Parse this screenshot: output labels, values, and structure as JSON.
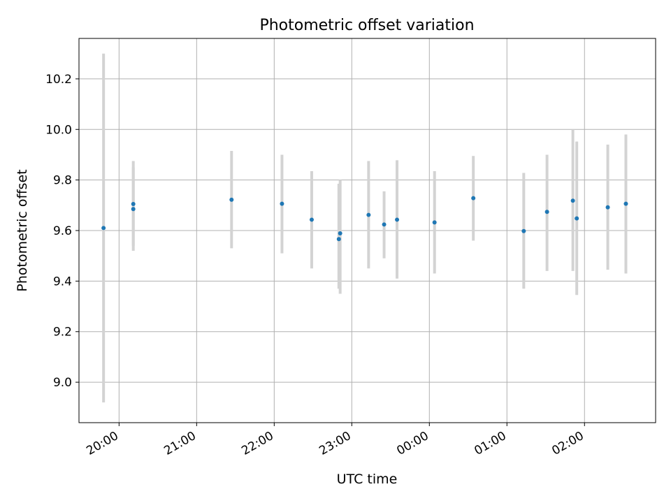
{
  "chart_data": {
    "type": "scatter",
    "title": "Photometric offset variation",
    "xlabel": "UTC time",
    "ylabel": "Photometric offset",
    "grid": true,
    "x_ticks": [
      "20:00",
      "21:00",
      "22:00",
      "23:00",
      "00:00",
      "01:00",
      "02:00"
    ],
    "y_ticks": [
      "9.0",
      "9.2",
      "9.4",
      "9.6",
      "9.8",
      "10.0",
      "10.2"
    ],
    "xlim": [
      "19:29",
      "02:55"
    ],
    "ylim": [
      8.84,
      10.36
    ],
    "colors": {
      "point": "#1f77b4",
      "errorbar": "#d3d3d3",
      "grid": "#b0b0b0"
    },
    "points": [
      {
        "t": "19:48",
        "y": 9.61,
        "ylo": 8.92,
        "yhi": 10.3
      },
      {
        "t": "20:11",
        "y": 9.705,
        "ylo": 9.54,
        "yhi": 9.875
      },
      {
        "t": "20:11",
        "y": 9.685,
        "ylo": 9.52,
        "yhi": 9.85
      },
      {
        "t": "21:27",
        "y": 9.722,
        "ylo": 9.53,
        "yhi": 9.915
      },
      {
        "t": "22:06",
        "y": 9.706,
        "ylo": 9.51,
        "yhi": 9.9
      },
      {
        "t": "22:29",
        "y": 9.643,
        "ylo": 9.45,
        "yhi": 9.835
      },
      {
        "t": "22:50",
        "y": 9.566,
        "ylo": 9.37,
        "yhi": 9.785
      },
      {
        "t": "22:51",
        "y": 9.589,
        "ylo": 9.35,
        "yhi": 9.8
      },
      {
        "t": "23:13",
        "y": 9.662,
        "ylo": 9.45,
        "yhi": 9.875
      },
      {
        "t": "23:25",
        "y": 9.624,
        "ylo": 9.49,
        "yhi": 9.755
      },
      {
        "t": "23:35",
        "y": 9.643,
        "ylo": 9.41,
        "yhi": 9.878
      },
      {
        "t": "00:04",
        "y": 9.632,
        "ylo": 9.43,
        "yhi": 9.835
      },
      {
        "t": "00:34",
        "y": 9.728,
        "ylo": 9.56,
        "yhi": 9.895
      },
      {
        "t": "01:13",
        "y": 9.598,
        "ylo": 9.37,
        "yhi": 9.828
      },
      {
        "t": "01:31",
        "y": 9.674,
        "ylo": 9.44,
        "yhi": 9.9
      },
      {
        "t": "01:51",
        "y": 9.718,
        "ylo": 9.44,
        "yhi": 10.0
      },
      {
        "t": "01:54",
        "y": 9.648,
        "ylo": 9.345,
        "yhi": 9.952
      },
      {
        "t": "02:18",
        "y": 9.692,
        "ylo": 9.445,
        "yhi": 9.94
      },
      {
        "t": "02:32",
        "y": 9.706,
        "ylo": 9.43,
        "yhi": 9.98
      }
    ]
  }
}
